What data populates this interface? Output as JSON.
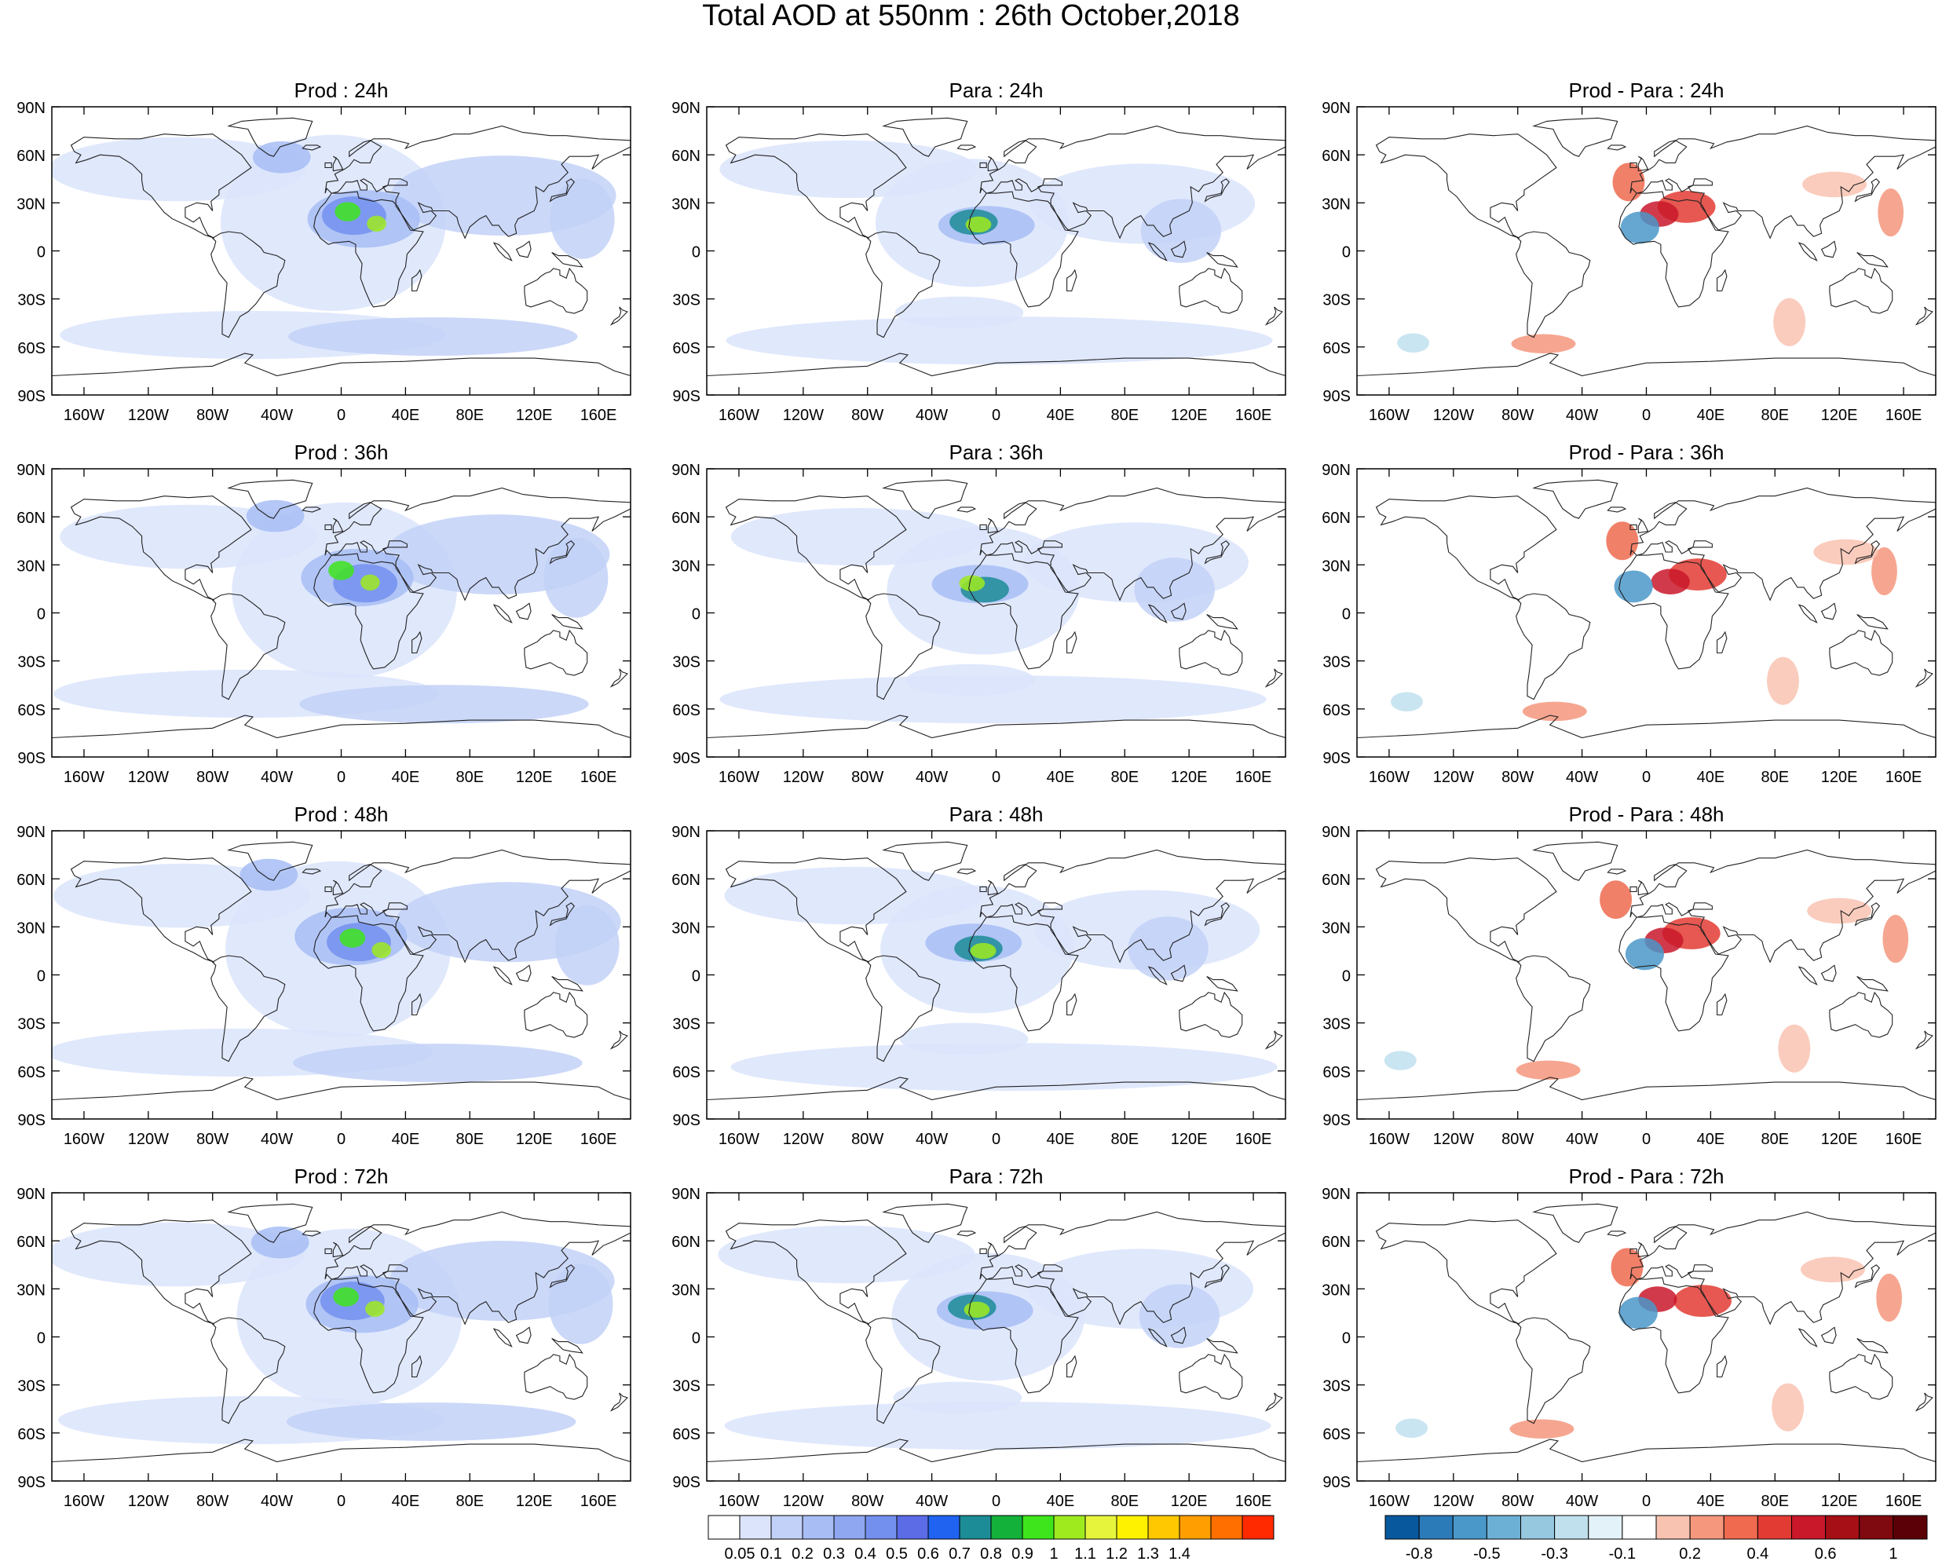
{
  "title": "Total AOD at 550nm : 26th October,2018",
  "columns": [
    "Prod",
    "Para",
    "Prod - Para"
  ],
  "lead_times": [
    "24h",
    "36h",
    "48h",
    "72h"
  ],
  "lat_ticks": [
    "90N",
    "60N",
    "30N",
    "0",
    "30S",
    "60S",
    "90S"
  ],
  "lon_ticks": [
    "160W",
    "120W",
    "80W",
    "40W",
    "0",
    "40E",
    "80E",
    "120E",
    "160E"
  ],
  "colorbar_aod": {
    "labels": [
      "0.05",
      "0.1",
      "0.2",
      "0.3",
      "0.4",
      "0.5",
      "0.6",
      "0.7",
      "0.8",
      "0.9",
      "1",
      "1.1",
      "1.2",
      "1.3",
      "1.4"
    ],
    "colors": [
      "#ffffff",
      "#dbe4fb",
      "#c2d1f7",
      "#a7bdf4",
      "#8ea7f0",
      "#7490ee",
      "#5b6ce6",
      "#1f63f0",
      "#1c8c96",
      "#13b13a",
      "#3ee51c",
      "#9eea1f",
      "#e6f53c",
      "#fff200",
      "#ffc800",
      "#ff9e00",
      "#ff6f00",
      "#ff2a00"
    ]
  },
  "colorbar_diff": {
    "labels": [
      "-0.8",
      "-0.5",
      "-0.3",
      "-0.1",
      "0.2",
      "0.4",
      "0.6",
      "1"
    ],
    "colors": [
      "#08589e",
      "#2b7bb9",
      "#4a98c9",
      "#6db0d6",
      "#96c8e0",
      "#c0e0ee",
      "#e3f2f8",
      "#ffffff",
      "#f9c3b1",
      "#f5977c",
      "#ef6a4f",
      "#e23b33",
      "#c9182a",
      "#a50f15",
      "#7f0a0f",
      "#5c0008"
    ]
  }
}
